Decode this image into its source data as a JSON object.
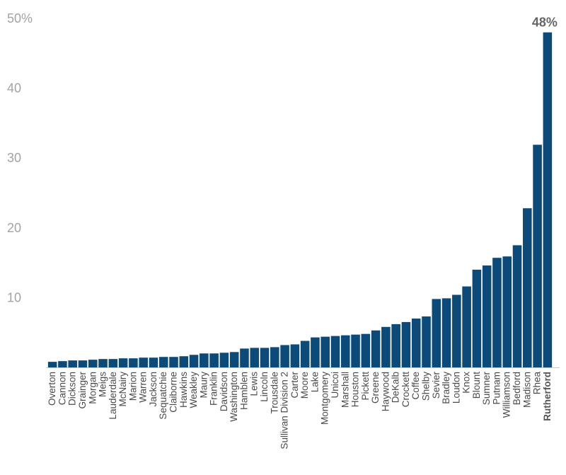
{
  "chart_data": {
    "type": "bar",
    "title": "",
    "xlabel": "",
    "ylabel": "",
    "ylim": [
      0,
      50
    ],
    "yticks": [
      "",
      "10",
      "20",
      "30",
      "40",
      "50%"
    ],
    "grid": false,
    "bar_color": "#0c4a7a",
    "highlight": "Rutherford",
    "data_labels": [
      {
        "category": "Rutherford",
        "text": "48%"
      }
    ],
    "categories": [
      "Overton",
      "Cannon",
      "Dickson",
      "Grainger",
      "Morgan",
      "Meigs",
      "Lauderdale",
      "McNairy",
      "Marion",
      "Warren",
      "Jackson",
      "Sequatchie",
      "Claiborne",
      "Hawkins",
      "Weakley",
      "Maury",
      "Franklin",
      "Davidson",
      "Washington",
      "Hamblen",
      "Lewis",
      "Lincoln",
      "Trousdale",
      "Sullivan Division 2",
      "Carter",
      "Moore",
      "Lake",
      "Montgomery",
      "Unicoi",
      "Marshall",
      "Houston",
      "Pickett",
      "Greene",
      "Haywood",
      "DeKalb",
      "Crockett",
      "Coffee",
      "Shelby",
      "Sevier",
      "Bradley",
      "Loudon",
      "Knox",
      "Blount",
      "Sumner",
      "Putnam",
      "Williamson",
      "Bedford",
      "Madison",
      "Rhea",
      "Rutherford"
    ],
    "values": [
      0.8,
      0.9,
      1.0,
      1.0,
      1.1,
      1.2,
      1.2,
      1.3,
      1.3,
      1.4,
      1.4,
      1.5,
      1.5,
      1.6,
      1.8,
      2.0,
      2.0,
      2.1,
      2.2,
      2.7,
      2.8,
      2.8,
      2.9,
      3.2,
      3.3,
      3.8,
      4.3,
      4.4,
      4.5,
      4.6,
      4.7,
      4.8,
      5.3,
      5.8,
      6.2,
      6.5,
      7.0,
      7.3,
      9.8,
      9.9,
      10.4,
      11.6,
      14.0,
      14.6,
      15.7,
      15.9,
      17.5,
      22.8,
      31.9,
      48.0
    ]
  }
}
